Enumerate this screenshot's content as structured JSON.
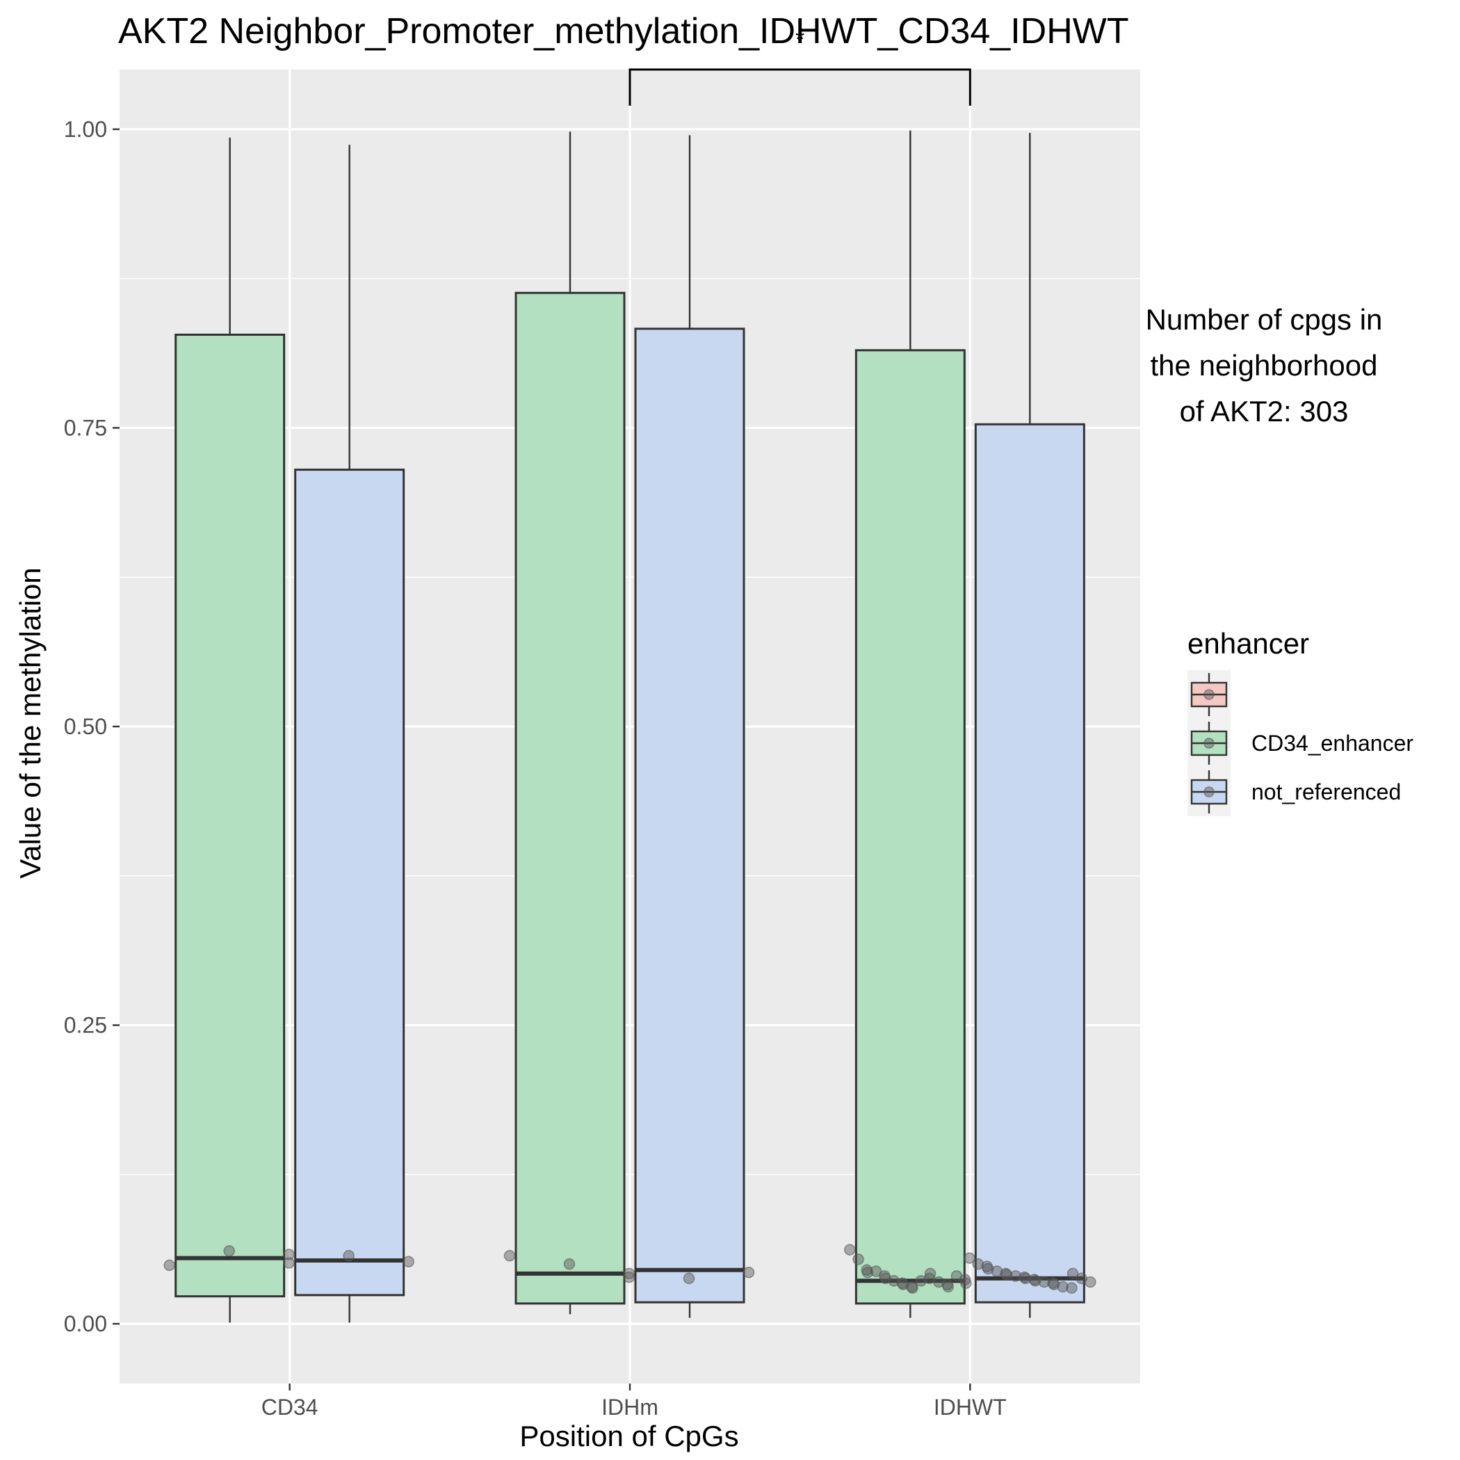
{
  "chart_data": {
    "type": "boxplot",
    "title": "AKT2 Neighbor_Promoter_methylation_IDHWT_CD34_IDHWT",
    "xlabel": "Position of CpGs",
    "ylabel": "Value of the methylation",
    "categories": [
      "CD34",
      "IDHm",
      "IDHWT"
    ],
    "ylim": [
      -0.05,
      1.05
    ],
    "yticks": [
      0.0,
      0.25,
      0.5,
      0.75,
      1.0
    ],
    "ytick_labels": [
      "0.00",
      "0.25",
      "0.50",
      "0.75",
      "1.00"
    ],
    "grid": true,
    "series": [
      {
        "name": "CD34_enhancer",
        "color": "#b2e0c0",
        "boxes": [
          {
            "category": "CD34",
            "whisker_low": 0.001,
            "q1": 0.023,
            "median": 0.055,
            "q3": 0.828,
            "whisker_high": 0.993
          },
          {
            "category": "IDHm",
            "whisker_low": 0.008,
            "q1": 0.017,
            "median": 0.042,
            "q3": 0.863,
            "whisker_high": 0.998
          },
          {
            "category": "IDHWT",
            "whisker_low": 0.005,
            "q1": 0.017,
            "median": 0.036,
            "q3": 0.815,
            "whisker_high": 0.999
          }
        ]
      },
      {
        "name": "not_referenced",
        "color": "#c8d8f0",
        "boxes": [
          {
            "category": "CD34",
            "whisker_low": 0.001,
            "q1": 0.024,
            "median": 0.053,
            "q3": 0.715,
            "whisker_high": 0.987
          },
          {
            "category": "IDHm",
            "whisker_low": 0.005,
            "q1": 0.018,
            "median": 0.045,
            "q3": 0.833,
            "whisker_high": 0.995
          },
          {
            "category": "IDHWT",
            "whisker_low": 0.005,
            "q1": 0.018,
            "median": 0.038,
            "q3": 0.753,
            "whisker_high": 0.997
          }
        ]
      }
    ],
    "points": [
      {
        "category": "CD34",
        "group": "CD34_enhancer",
        "values": [
          0.049,
          0.061,
          0.051
        ]
      },
      {
        "category": "CD34",
        "group": "not_referenced",
        "values": [
          0.058,
          0.057,
          0.052
        ]
      },
      {
        "category": "IDHm",
        "group": "CD34_enhancer",
        "values": [
          0.057,
          0.05,
          0.039
        ]
      },
      {
        "category": "IDHm",
        "group": "not_referenced",
        "values": [
          0.042,
          0.038,
          0.043
        ]
      },
      {
        "category": "IDHWT",
        "group": "CD34_enhancer",
        "values": [
          0.062,
          0.054,
          0.045,
          0.043,
          0.044,
          0.04,
          0.038,
          0.036,
          0.034,
          0.033,
          0.031,
          0.03,
          0.036,
          0.038,
          0.042,
          0.035,
          0.033,
          0.031,
          0.04,
          0.037,
          0.034
        ]
      },
      {
        "category": "IDHWT",
        "group": "not_referenced",
        "values": [
          0.055,
          0.05,
          0.048,
          0.046,
          0.044,
          0.042,
          0.041,
          0.04,
          0.039,
          0.038,
          0.037,
          0.036,
          0.035,
          0.034,
          0.033,
          0.031,
          0.03,
          0.042,
          0.038,
          0.035
        ]
      }
    ],
    "significance": {
      "from": "IDHm",
      "to": "IDHWT",
      "label": "*"
    },
    "legend": {
      "title": "enhancer",
      "position": "right",
      "entries": [
        {
          "label": "",
          "color": "#f4c9c4"
        },
        {
          "label": "CD34_enhancer",
          "color": "#b2e0c0"
        },
        {
          "label": "not_referenced",
          "color": "#c8d8f0"
        }
      ]
    },
    "annotation": [
      "Number of cpgs in",
      "the neighborhood",
      "of AKT2: 303"
    ]
  },
  "colors": {
    "panel": "#ebebeb",
    "grid": "#ffffff",
    "stroke": "#333333",
    "point": "#555555"
  }
}
